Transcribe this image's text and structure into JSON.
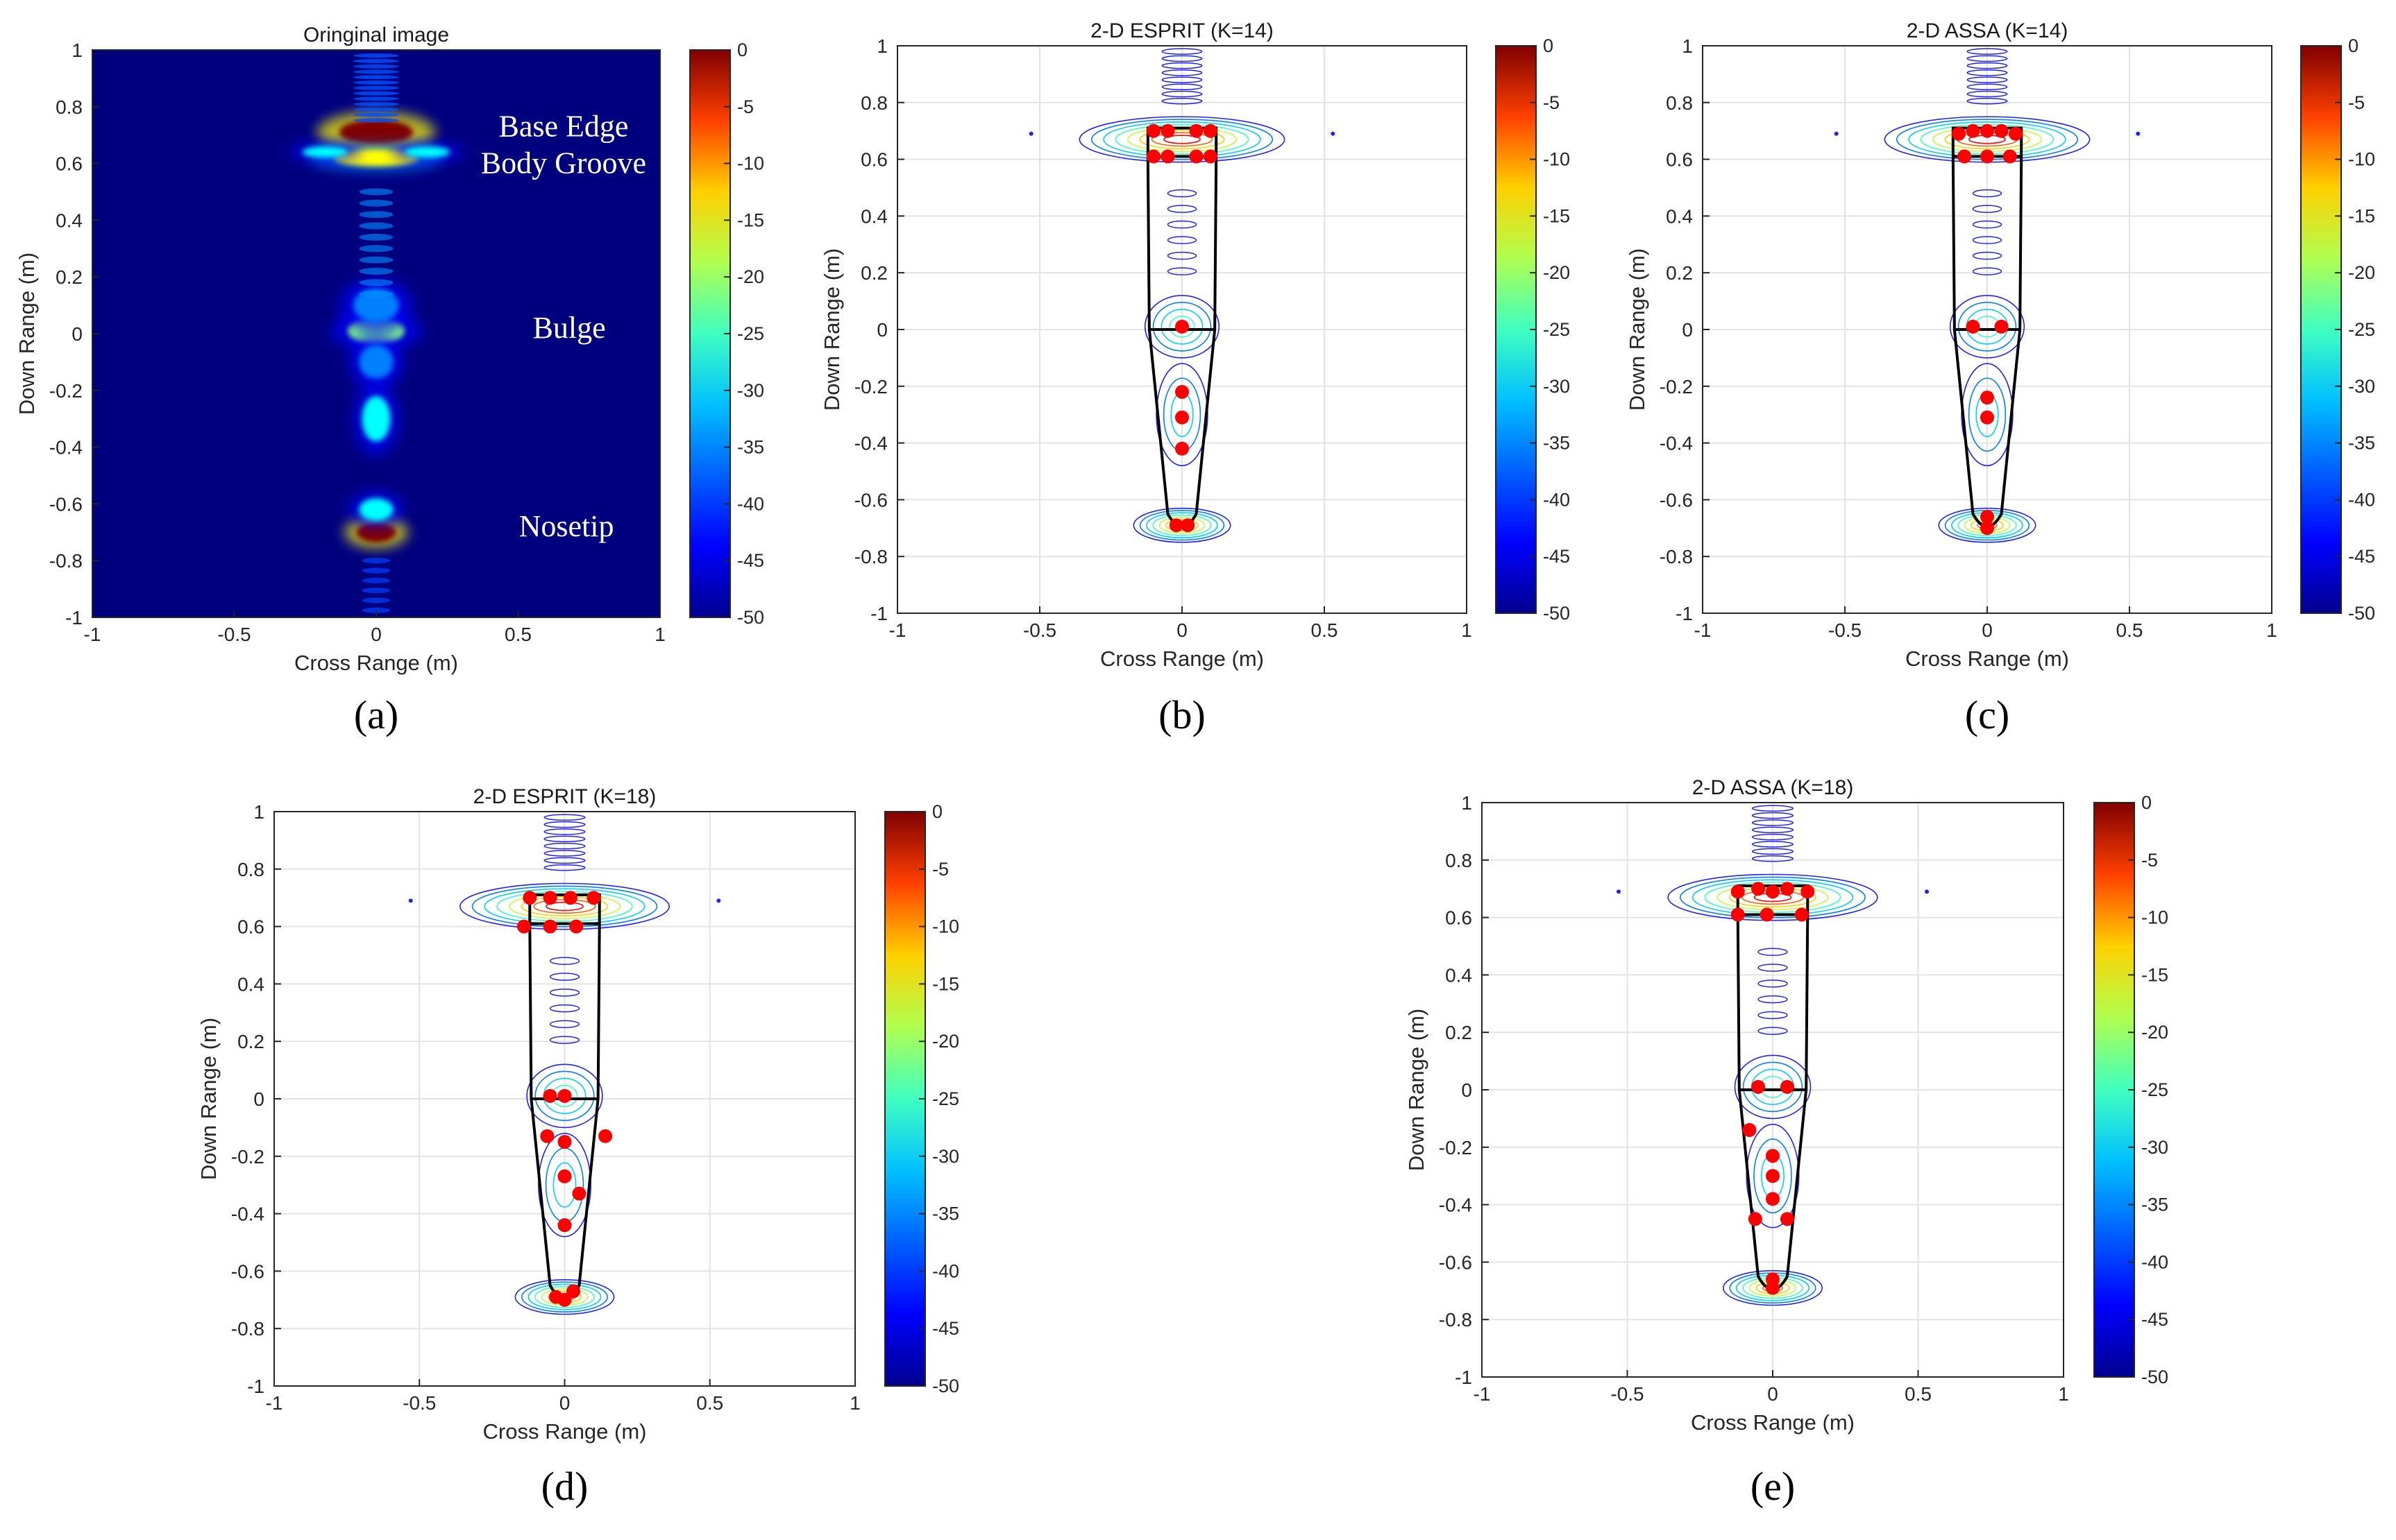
{
  "colors": {
    "background": "#00007f",
    "colormap": [
      "#00008f",
      "#0000ff",
      "#0080ff",
      "#00ffff",
      "#80ff80",
      "#ffff00",
      "#ff8000",
      "#ff0000",
      "#800000"
    ],
    "points": "#ff0000",
    "outline": "#000000"
  },
  "chart_data": [
    {
      "type": "heatmap",
      "panel_label": "(a)",
      "title": "Oringinal image",
      "xlabel": "Cross Range (m)",
      "ylabel": "Down Range (m)",
      "xlim": [
        -1,
        1
      ],
      "ylim": [
        -1,
        1
      ],
      "xticks": [
        -1,
        -0.5,
        0,
        0.5,
        1
      ],
      "yticks": [
        -1,
        -0.8,
        -0.6,
        -0.4,
        -0.2,
        0,
        0.2,
        0.4,
        0.6,
        0.8,
        1
      ],
      "grid": false,
      "colorbar": {
        "range": [
          -50,
          0
        ],
        "ticks": [
          0,
          -5,
          -10,
          -15,
          -20,
          -25,
          -30,
          -35,
          -40,
          -45,
          -50
        ]
      },
      "annotations": [
        {
          "text": "Base Edge",
          "x": 0.66,
          "y": 0.73
        },
        {
          "text": "Body Groove",
          "x": 0.66,
          "y": 0.6
        },
        {
          "text": "Bulge",
          "x": 0.68,
          "y": 0.02
        },
        {
          "text": "Nosetip",
          "x": 0.67,
          "y": -0.68
        }
      ],
      "blobs": [
        {
          "x": 0,
          "y": 0.71,
          "sx": 0.13,
          "sy": 0.045,
          "level": 0
        },
        {
          "x": 0,
          "y": 0.62,
          "sx": 0.15,
          "sy": 0.03,
          "level": -18
        },
        {
          "x": -0.18,
          "y": 0.64,
          "sx": 0.08,
          "sy": 0.02,
          "level": -30
        },
        {
          "x": 0.18,
          "y": 0.64,
          "sx": 0.08,
          "sy": 0.02,
          "level": -30
        },
        {
          "x": 0,
          "y": 0.01,
          "sx": 0.1,
          "sy": 0.045,
          "level": -26
        },
        {
          "x": 0,
          "y": 0.1,
          "sx": 0.08,
          "sy": 0.06,
          "level": -36
        },
        {
          "x": 0,
          "y": -0.1,
          "sx": 0.06,
          "sy": 0.06,
          "level": -36
        },
        {
          "x": 0,
          "y": -0.3,
          "sx": 0.05,
          "sy": 0.08,
          "level": -34
        },
        {
          "x": 0,
          "y": -0.7,
          "sx": 0.07,
          "sy": 0.035,
          "level": -3
        },
        {
          "x": 0,
          "y": -0.62,
          "sx": 0.06,
          "sy": 0.04,
          "level": -30
        }
      ]
    },
    {
      "type": "scatter",
      "panel_label": "(b)",
      "title": "2-D ESPRIT (K=14)",
      "xlabel": "Cross Range (m)",
      "ylabel": "Down Range (m)",
      "xlim": [
        -1,
        1
      ],
      "ylim": [
        -1,
        1
      ],
      "xticks": [
        -1,
        -0.5,
        0,
        0.5,
        1
      ],
      "yticks": [
        -1,
        -0.8,
        -0.6,
        -0.4,
        -0.2,
        0,
        0.2,
        0.4,
        0.6,
        0.8,
        1
      ],
      "grid": true,
      "colorbar": {
        "range": [
          -50,
          0
        ],
        "ticks": [
          0,
          -5,
          -10,
          -15,
          -20,
          -25,
          -30,
          -35,
          -40,
          -45,
          -50
        ]
      },
      "scatterers": [
        {
          "x": -0.05,
          "y": 0.7
        },
        {
          "x": 0.05,
          "y": 0.7
        },
        {
          "x": -0.1,
          "y": 0.7
        },
        {
          "x": 0.1,
          "y": 0.7
        },
        {
          "x": -0.05,
          "y": 0.61
        },
        {
          "x": 0.05,
          "y": 0.61
        },
        {
          "x": -0.1,
          "y": 0.61
        },
        {
          "x": 0.1,
          "y": 0.61
        },
        {
          "x": 0,
          "y": 0.01
        },
        {
          "x": 0,
          "y": -0.22
        },
        {
          "x": 0,
          "y": -0.31
        },
        {
          "x": 0,
          "y": -0.42
        },
        {
          "x": -0.02,
          "y": -0.69
        },
        {
          "x": 0.02,
          "y": -0.69
        }
      ]
    },
    {
      "type": "scatter",
      "panel_label": "(c)",
      "title": "2-D ASSA (K=14)",
      "xlabel": "Cross Range (m)",
      "ylabel": "Down Range (m)",
      "xlim": [
        -1,
        1
      ],
      "ylim": [
        -1,
        1
      ],
      "xticks": [
        -1,
        -0.5,
        0,
        0.5,
        1
      ],
      "yticks": [
        -1,
        -0.8,
        -0.6,
        -0.4,
        -0.2,
        0,
        0.2,
        0.4,
        0.6,
        0.8,
        1
      ],
      "grid": true,
      "colorbar": {
        "range": [
          -50,
          0
        ],
        "ticks": [
          0,
          -5,
          -10,
          -15,
          -20,
          -25,
          -30,
          -35,
          -40,
          -45,
          -50
        ]
      },
      "scatterers": [
        {
          "x": -0.1,
          "y": 0.69
        },
        {
          "x": -0.05,
          "y": 0.7
        },
        {
          "x": 0,
          "y": 0.7
        },
        {
          "x": 0.05,
          "y": 0.7
        },
        {
          "x": 0.1,
          "y": 0.69
        },
        {
          "x": -0.08,
          "y": 0.61
        },
        {
          "x": 0,
          "y": 0.61
        },
        {
          "x": 0.08,
          "y": 0.61
        },
        {
          "x": -0.05,
          "y": 0.01
        },
        {
          "x": 0.05,
          "y": 0.01
        },
        {
          "x": 0,
          "y": -0.24
        },
        {
          "x": 0,
          "y": -0.31
        },
        {
          "x": 0,
          "y": -0.66
        },
        {
          "x": 0,
          "y": -0.7
        }
      ]
    },
    {
      "type": "scatter",
      "panel_label": "(d)",
      "title": "2-D ESPRIT (K=18)",
      "xlabel": "Cross Range (m)",
      "ylabel": "Down Range (m)",
      "xlim": [
        -1,
        1
      ],
      "ylim": [
        -1,
        1
      ],
      "xticks": [
        -1,
        -0.5,
        0,
        0.5,
        1
      ],
      "yticks": [
        -1,
        -0.8,
        -0.6,
        -0.4,
        -0.2,
        0,
        0.2,
        0.4,
        0.6,
        0.8,
        1
      ],
      "grid": true,
      "colorbar": {
        "range": [
          -50,
          0
        ],
        "ticks": [
          0,
          -5,
          -10,
          -15,
          -20,
          -25,
          -30,
          -35,
          -40,
          -45,
          -50
        ]
      },
      "scatterers": [
        {
          "x": -0.12,
          "y": 0.7
        },
        {
          "x": -0.05,
          "y": 0.7
        },
        {
          "x": 0.02,
          "y": 0.7
        },
        {
          "x": 0.1,
          "y": 0.7
        },
        {
          "x": -0.14,
          "y": 0.6
        },
        {
          "x": -0.05,
          "y": 0.6
        },
        {
          "x": 0.04,
          "y": 0.6
        },
        {
          "x": -0.05,
          "y": 0.01
        },
        {
          "x": 0,
          "y": 0.01
        },
        {
          "x": -0.06,
          "y": -0.13
        },
        {
          "x": 0,
          "y": -0.15
        },
        {
          "x": 0.14,
          "y": -0.13
        },
        {
          "x": 0,
          "y": -0.27
        },
        {
          "x": 0.05,
          "y": -0.33
        },
        {
          "x": 0,
          "y": -0.44
        },
        {
          "x": -0.03,
          "y": -0.69
        },
        {
          "x": 0.03,
          "y": -0.67
        },
        {
          "x": 0,
          "y": -0.7
        }
      ]
    },
    {
      "type": "scatter",
      "panel_label": "(e)",
      "title": "2-D ASSA (K=18)",
      "xlabel": "Cross Range (m)",
      "ylabel": "Down Range (m)",
      "xlim": [
        -1,
        1
      ],
      "ylim": [
        -1,
        1
      ],
      "xticks": [
        -1,
        -0.5,
        0,
        0.5,
        1
      ],
      "yticks": [
        -1,
        -0.8,
        -0.6,
        -0.4,
        -0.2,
        0,
        0.2,
        0.4,
        0.6,
        0.8,
        1
      ],
      "grid": true,
      "colorbar": {
        "range": [
          -50,
          0
        ],
        "ticks": [
          0,
          -5,
          -10,
          -15,
          -20,
          -25,
          -30,
          -35,
          -40,
          -45,
          -50
        ]
      },
      "scatterers": [
        {
          "x": -0.12,
          "y": 0.69
        },
        {
          "x": -0.05,
          "y": 0.7
        },
        {
          "x": 0,
          "y": 0.69
        },
        {
          "x": 0.05,
          "y": 0.7
        },
        {
          "x": 0.12,
          "y": 0.69
        },
        {
          "x": -0.12,
          "y": 0.61
        },
        {
          "x": -0.02,
          "y": 0.61
        },
        {
          "x": 0.1,
          "y": 0.61
        },
        {
          "x": -0.05,
          "y": 0.01
        },
        {
          "x": 0.05,
          "y": 0.01
        },
        {
          "x": -0.08,
          "y": -0.14
        },
        {
          "x": 0,
          "y": -0.23
        },
        {
          "x": 0,
          "y": -0.3
        },
        {
          "x": 0,
          "y": -0.38
        },
        {
          "x": -0.06,
          "y": -0.45
        },
        {
          "x": 0.05,
          "y": -0.45
        },
        {
          "x": 0,
          "y": -0.66
        },
        {
          "x": 0,
          "y": -0.69
        }
      ]
    }
  ]
}
